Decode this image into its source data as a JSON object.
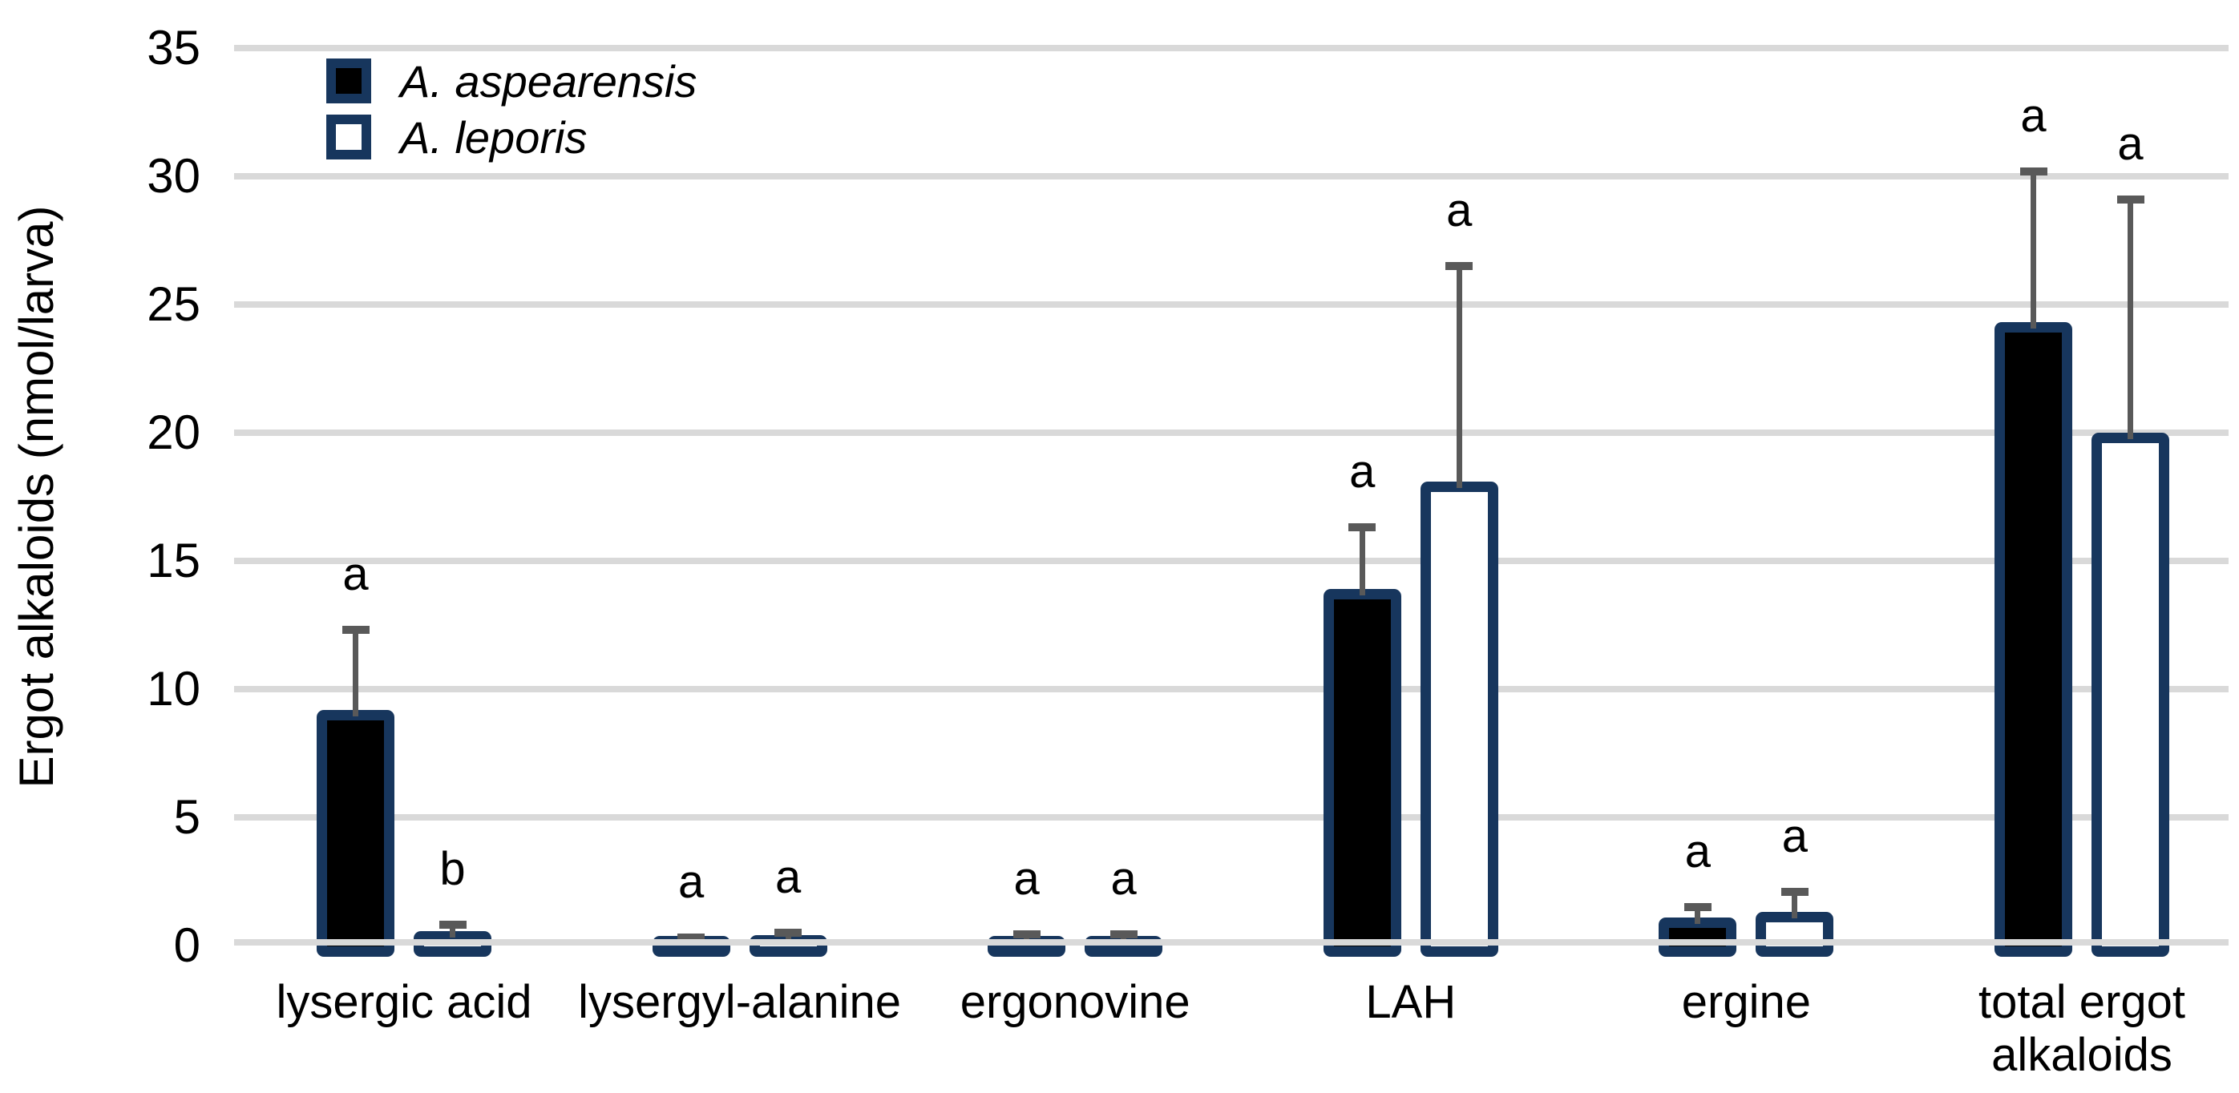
{
  "chart_data": {
    "type": "bar",
    "title": "",
    "ylabel": "Ergot alkaloids (nmol/larva)",
    "xlabel": "",
    "ylim": [
      0,
      35
    ],
    "yticks": [
      0,
      5,
      10,
      15,
      20,
      25,
      30,
      35
    ],
    "grid": "horizontal",
    "legend_position": "top-left-inside",
    "categories": [
      "lysergic acid",
      "lysergyl-alanine",
      "ergonovine",
      "LAH",
      "ergine",
      "total ergot alkaloids"
    ],
    "category_label_lines": [
      [
        "lysergic acid"
      ],
      [
        "lysergyl-alanine"
      ],
      [
        "ergonovine"
      ],
      [
        "LAH"
      ],
      [
        "ergine"
      ],
      [
        "total ergot",
        "alkaloids"
      ]
    ],
    "series": [
      {
        "name": "A. aspearensis",
        "fill": "black",
        "values": [
          9.2,
          0.2,
          0.35,
          13.9,
          1.1,
          24.3
        ],
        "error_bar_tops": [
          12.3,
          0.3,
          0.45,
          16.3,
          1.5,
          30.2
        ],
        "sig_letters": [
          "a",
          "a",
          "a",
          "a",
          "a",
          "a"
        ]
      },
      {
        "name": "A. leporis",
        "fill": "white",
        "values": [
          0.55,
          0.4,
          0.35,
          18.1,
          1.3,
          20.0
        ],
        "error_bar_tops": [
          0.8,
          0.5,
          0.45,
          26.5,
          2.1,
          29.1
        ],
        "sig_letters": [
          "b",
          "a",
          "a",
          "a",
          "a",
          "a"
        ]
      }
    ],
    "colors": {
      "bar_border": "#17365D",
      "bar_fill_series1": "#000000",
      "bar_fill_series2": "#FFFFFF",
      "gridline": "#D9D9D9",
      "error_bar": "#595959",
      "text": "#000000",
      "background": "#FFFFFF"
    }
  },
  "legend": {
    "items": [
      {
        "label": "A. aspearensis",
        "swatch": "black-filled-square"
      },
      {
        "label": "A. leporis",
        "swatch": "white-open-square"
      }
    ]
  },
  "y_axis": {
    "title": "Ergot alkaloids (nmol/larva)"
  }
}
